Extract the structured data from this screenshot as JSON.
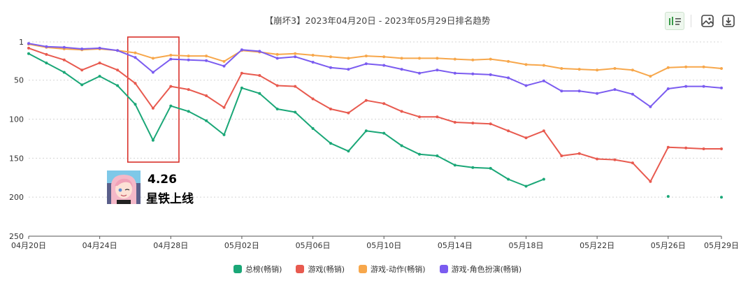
{
  "title": "【崩坏3】2023年04月20日 - 2023年05月29日排名趋势",
  "toolbar": {
    "icons": [
      "bar-chart-icon",
      "image-icon",
      "download-icon"
    ]
  },
  "annotation": {
    "date": "4.26",
    "text": "星铁上线",
    "highlight_x_range": [
      "04月26日",
      "04月29日"
    ]
  },
  "colors": {
    "total": "#1aa777",
    "game": "#e85a4f",
    "action": "#f7a74b",
    "roleplay": "#7b5cf0",
    "highlight": "#d9312b",
    "grid": "#d4d4d4"
  },
  "chart_data": {
    "type": "line",
    "title": "【崩坏3】2023年04月20日 - 2023年05月29日排名趋势",
    "xlabel": "",
    "ylabel": "",
    "y_inverted": true,
    "ylim": [
      1,
      250
    ],
    "y_ticks": [
      1,
      50,
      100,
      150,
      200,
      250
    ],
    "x": [
      "04月20日",
      "04月21日",
      "04月22日",
      "04月23日",
      "04月24日",
      "04月25日",
      "04月26日",
      "04月27日",
      "04月28日",
      "04月29日",
      "04月30日",
      "05月01日",
      "05月02日",
      "05月03日",
      "05月04日",
      "05月05日",
      "05月06日",
      "05月07日",
      "05月08日",
      "05月09日",
      "05月10日",
      "05月11日",
      "05月12日",
      "05月13日",
      "05月14日",
      "05月15日",
      "05月16日",
      "05月17日",
      "05月18日",
      "05月19日",
      "05月20日",
      "05月21日",
      "05月22日",
      "05月23日",
      "05月24日",
      "05月25日",
      "05月26日",
      "05月27日",
      "05月28日",
      "05月29日"
    ],
    "x_tick_labels": [
      "04月20日",
      "04月24日",
      "04月28日",
      "05月02日",
      "05月06日",
      "05月10日",
      "05月14日",
      "05月18日",
      "05月22日",
      "05月26日",
      "05月29日"
    ],
    "grid": true,
    "legend_position": "bottom",
    "series": [
      {
        "name": "总榜(畅销)",
        "color_key": "total",
        "values": [
          16,
          28,
          40,
          56,
          45,
          57,
          81,
          127,
          83,
          90,
          102,
          120,
          60,
          67,
          87,
          91,
          112,
          131,
          141,
          115,
          118,
          134,
          145,
          147,
          159,
          162,
          163,
          177,
          186,
          177,
          null,
          null,
          null,
          null,
          null,
          null,
          199,
          null,
          null,
          200
        ]
      },
      {
        "name": "游戏(畅销)",
        "color_key": "game",
        "values": [
          9,
          17,
          24,
          37,
          28,
          37,
          54,
          86,
          58,
          62,
          70,
          85,
          41,
          44,
          57,
          58,
          74,
          87,
          92,
          76,
          80,
          90,
          97,
          97,
          104,
          105,
          106,
          115,
          124,
          115,
          147,
          144,
          151,
          152,
          156,
          180,
          136,
          137,
          138,
          138
        ]
      },
      {
        "name": "游戏-动作(畅销)",
        "color_key": "action",
        "values": [
          4,
          8,
          10,
          11,
          10,
          12,
          15,
          22,
          18,
          19,
          19,
          26,
          12,
          14,
          17,
          16,
          18,
          20,
          22,
          19,
          20,
          22,
          22,
          22,
          23,
          24,
          23,
          26,
          30,
          31,
          35,
          36,
          37,
          35,
          37,
          45,
          34,
          33,
          33,
          35
        ]
      },
      {
        "name": "游戏-角色扮演(畅销)",
        "color_key": "roleplay",
        "values": [
          3,
          7,
          8,
          10,
          9,
          12,
          21,
          40,
          23,
          24,
          25,
          32,
          11,
          13,
          22,
          20,
          27,
          34,
          36,
          29,
          31,
          36,
          41,
          37,
          41,
          42,
          43,
          47,
          57,
          51,
          64,
          64,
          67,
          62,
          68,
          84,
          61,
          58,
          58,
          60
        ]
      }
    ]
  }
}
